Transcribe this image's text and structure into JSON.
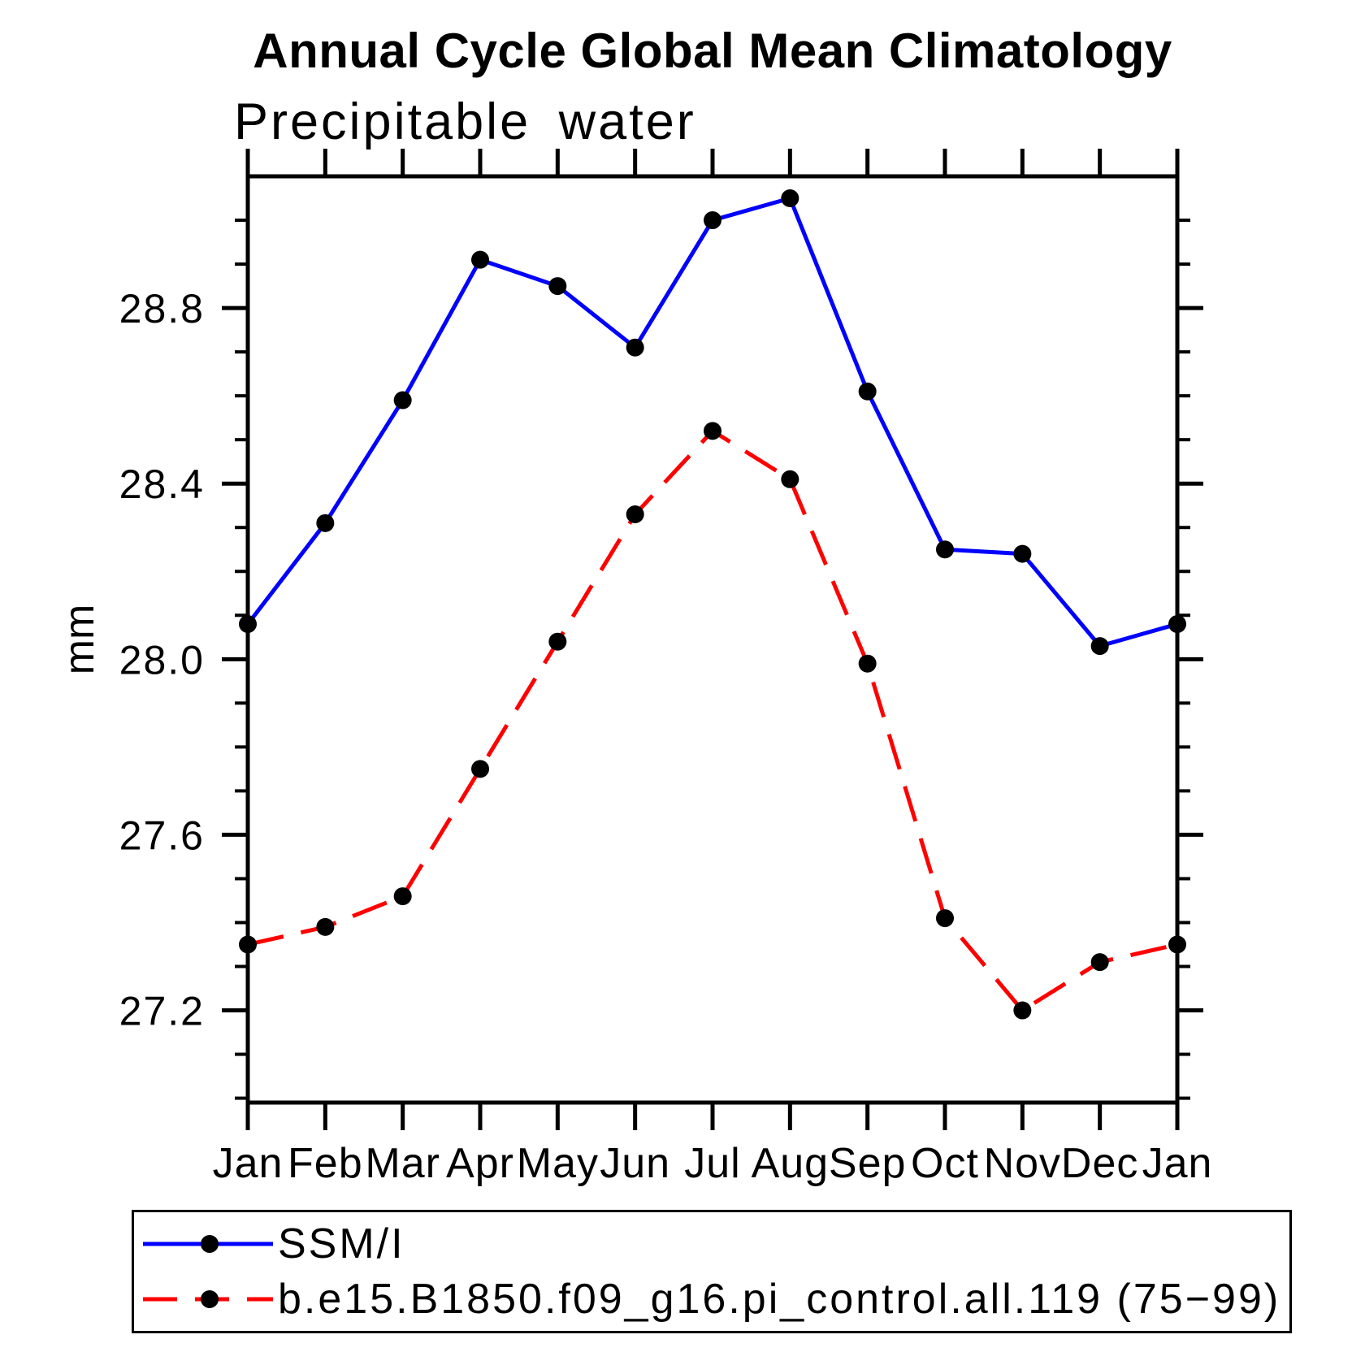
{
  "chart_data": {
    "type": "line",
    "title": "Annual Cycle Global Mean Climatology",
    "subtitle": "Precipitable water",
    "ylabel": "mm",
    "categories": [
      "Jan",
      "Feb",
      "Mar",
      "Apr",
      "May",
      "Jun",
      "Jul",
      "Aug",
      "Sep",
      "Oct",
      "Nov",
      "Dec",
      "Jan"
    ],
    "ylim": [
      26.99,
      29.1
    ],
    "yticks_major": [
      27.2,
      27.6,
      28.0,
      28.4,
      28.8
    ],
    "ytick_minor_step": 0.1,
    "grid": false,
    "legend_position": "bottom-left-box",
    "series": [
      {
        "name": "SSM/I",
        "color": "#0000ff",
        "line_style": "solid",
        "marker": "filled-circle",
        "marker_color": "#000000",
        "values": [
          28.08,
          28.31,
          28.59,
          28.91,
          28.85,
          28.71,
          29.0,
          29.05,
          28.61,
          28.25,
          28.24,
          28.03,
          28.08
        ]
      },
      {
        "name": "b.e15.B1850.f09_g16.pi_control.all.119 (75−99)",
        "color": "#ff0000",
        "line_style": "dashed",
        "marker": "filled-circle",
        "marker_color": "#000000",
        "values": [
          27.35,
          27.39,
          27.46,
          27.75,
          28.04,
          28.33,
          28.52,
          28.41,
          27.99,
          27.41,
          27.2,
          27.31,
          27.35
        ]
      }
    ]
  }
}
